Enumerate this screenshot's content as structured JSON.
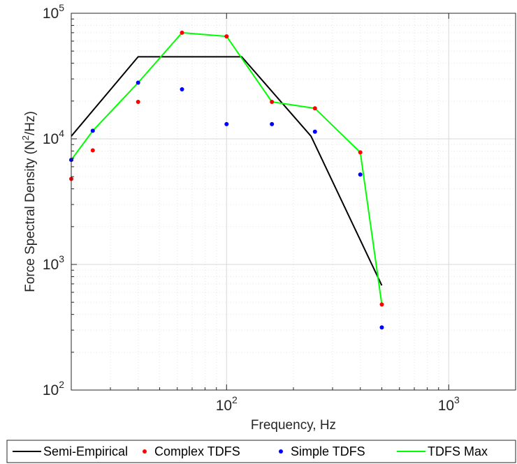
{
  "chart_data": {
    "type": "line",
    "title": "",
    "xlabel": "Frequency, Hz",
    "ylabel_main": "Force Spectral Density (N",
    "ylabel_sup": "2",
    "ylabel_tail": "/Hz)",
    "xscale": "log",
    "yscale": "log",
    "xlim": [
      20,
      2000
    ],
    "ylim": [
      100,
      100000
    ],
    "grid": true,
    "minor_grid": true,
    "legend_position": "bottom-outside",
    "x_ticks": [
      {
        "value": 100,
        "base": "10",
        "exp": "2"
      },
      {
        "value": 1000,
        "base": "10",
        "exp": "3"
      }
    ],
    "y_ticks": [
      {
        "value": 100,
        "base": "10",
        "exp": "2"
      },
      {
        "value": 1000,
        "base": "10",
        "exp": "3"
      },
      {
        "value": 10000,
        "base": "10",
        "exp": "4"
      },
      {
        "value": 100000,
        "base": "10",
        "exp": "5"
      }
    ],
    "series": [
      {
        "name": "Semi-Empirical",
        "kind": "line",
        "color": "#000000",
        "points": [
          [
            20,
            10500
          ],
          [
            40,
            45000
          ],
          [
            117,
            45000
          ],
          [
            240,
            10500
          ],
          [
            500,
            680
          ]
        ]
      },
      {
        "name": "Complex TDFS",
        "kind": "scatter",
        "color": "#ff0000",
        "points": [
          [
            20,
            4800
          ],
          [
            25,
            8100
          ],
          [
            40,
            19700
          ],
          [
            63,
            70000
          ],
          [
            100,
            65500
          ],
          [
            160,
            19700
          ],
          [
            250,
            17500
          ],
          [
            400,
            7800
          ],
          [
            500,
            480
          ]
        ]
      },
      {
        "name": "Simple TDFS",
        "kind": "scatter",
        "color": "#0000ff",
        "points": [
          [
            20,
            6800
          ],
          [
            25,
            11600
          ],
          [
            40,
            28000
          ],
          [
            63,
            24800
          ],
          [
            100,
            13100
          ],
          [
            160,
            13100
          ],
          [
            250,
            11400
          ],
          [
            400,
            5200
          ],
          [
            500,
            315
          ]
        ]
      },
      {
        "name": "TDFS Max",
        "kind": "line",
        "color": "#00ff00",
        "points": [
          [
            20,
            6800
          ],
          [
            25,
            11600
          ],
          [
            40,
            28000
          ],
          [
            63,
            70000
          ],
          [
            100,
            65500
          ],
          [
            160,
            19700
          ],
          [
            250,
            17500
          ],
          [
            400,
            7800
          ],
          [
            500,
            480
          ]
        ]
      }
    ]
  }
}
